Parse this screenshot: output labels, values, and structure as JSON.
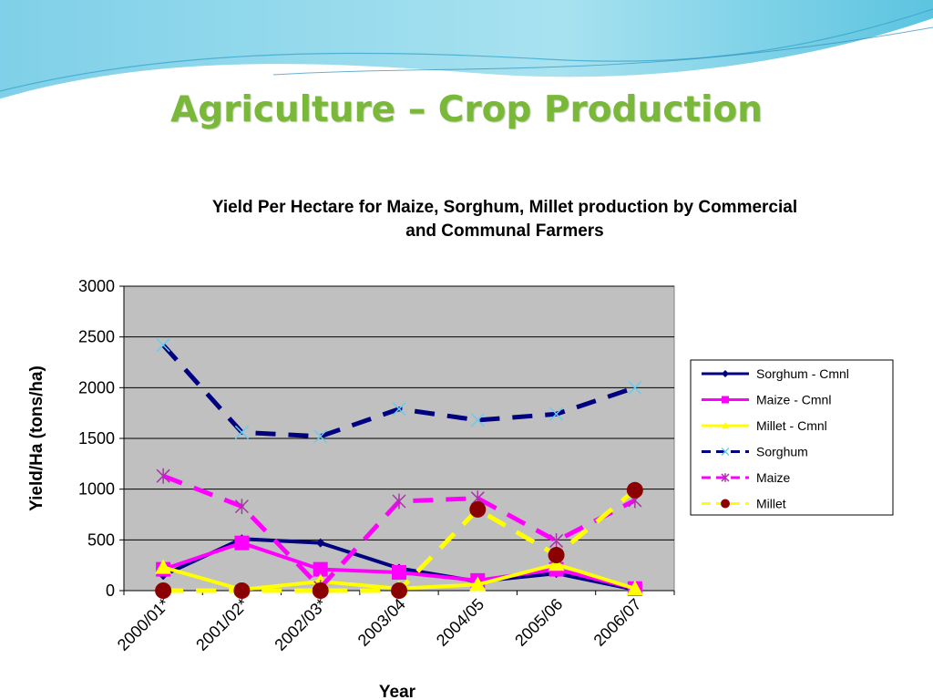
{
  "slide": {
    "title": "Agriculture – Crop Production"
  },
  "chart_data": {
    "type": "line",
    "title_lines": [
      "Yield Per Hectare for Maize, Sorghum, Millet production by Commercial",
      "and Communal Farmers"
    ],
    "xlabel": "Year",
    "ylabel": "Yield/Ha (tons/ha)",
    "ylim": [
      0,
      3000
    ],
    "yticks": [
      0,
      500,
      1000,
      1500,
      2000,
      2500,
      3000
    ],
    "categories": [
      "2000/01*",
      "2001/02*",
      "2002/03*",
      "2003/04",
      "2004/05",
      "2005/06",
      "2006/07"
    ],
    "grid": true,
    "legend_position": "right",
    "plot_background": "#c0c0c0",
    "series": [
      {
        "name": "Sorghum - Cmnl",
        "color": "#000080",
        "dash": "solid",
        "marker": "diamond",
        "values": [
          150,
          510,
          470,
          220,
          90,
          170,
          10
        ]
      },
      {
        "name": "Maize - Cmnl",
        "color": "#ff00ff",
        "dash": "solid",
        "marker": "square",
        "values": [
          210,
          470,
          210,
          180,
          100,
          210,
          20
        ]
      },
      {
        "name": "Millet - Cmnl",
        "color": "#ffff00",
        "dash": "solid",
        "marker": "triangle",
        "values": [
          230,
          10,
          90,
          20,
          60,
          260,
          20
        ]
      },
      {
        "name": "Sorghum",
        "color": "#000080",
        "dash": "dashed",
        "marker": "x",
        "values": [
          2420,
          1560,
          1520,
          1790,
          1680,
          1740,
          2000
        ]
      },
      {
        "name": "Maize",
        "color": "#ff00ff",
        "dash": "dashed",
        "marker": "star",
        "values": [
          1130,
          830,
          30,
          880,
          910,
          490,
          890
        ]
      },
      {
        "name": "Millet",
        "color": "#ffff00",
        "dash": "dashed",
        "marker": "circle",
        "marker_color": "#8b0000",
        "values": [
          0,
          0,
          0,
          0,
          800,
          350,
          990
        ]
      }
    ]
  }
}
